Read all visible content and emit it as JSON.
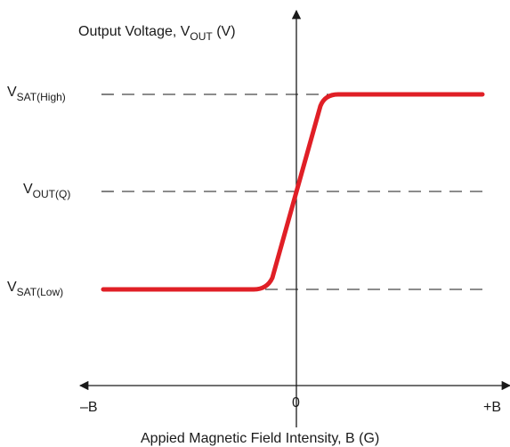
{
  "y_axis": {
    "label": "Output Voltage, V",
    "label_sub": "OUT",
    "label_unit": " (V)"
  },
  "x_axis": {
    "label": "Appied Magnetic Field Intensity, B (G)",
    "tick_left": "–B",
    "tick_center": "0",
    "tick_right": "+B"
  },
  "levels": {
    "high": {
      "base": "V",
      "sub": "SAT(High)"
    },
    "quiescent": {
      "base": "V",
      "sub": "OUT(Q)"
    },
    "low": {
      "base": "V",
      "sub": "SAT(Low)"
    }
  },
  "colors": {
    "transfer_curve": "#e01f26",
    "axes": "#1a1a1a"
  }
}
